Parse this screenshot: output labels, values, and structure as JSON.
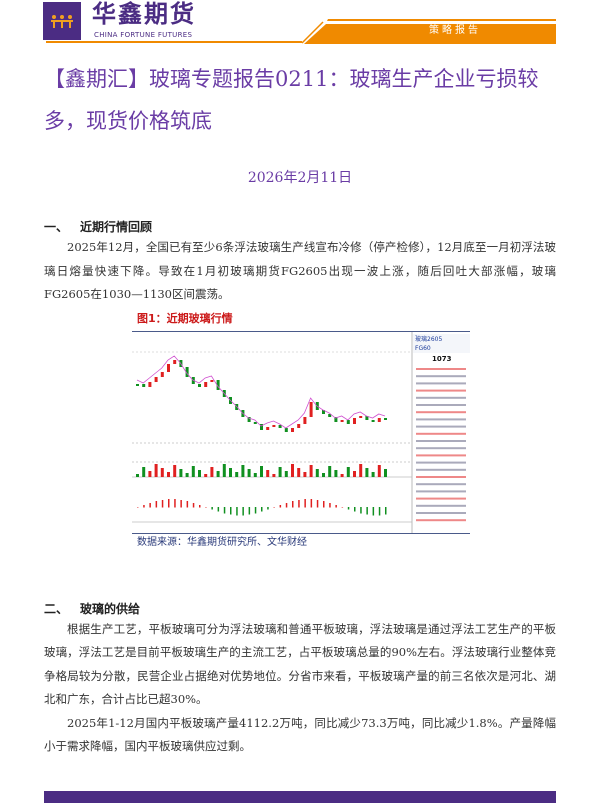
{
  "header": {
    "logo_cn": "华鑫期货",
    "logo_en": "CHINA FORTUNE FUTURES",
    "report_type": "策略报告",
    "brand_color": "#4b2c83",
    "accent_color": "#f08a00"
  },
  "title": "【鑫期汇】玻璃专题报告0211：玻璃生产企业亏损较多，现货价格筑底",
  "date": "2026年2月11日",
  "sections": [
    {
      "number": "一、",
      "heading": "近期行情回顾",
      "paragraphs": [
        "2025年12月，全国已有至少6条浮法玻璃生产线宣布冷修（停产检修），12月底至一月初浮法玻璃日熔量快速下降。导致在1月初玻璃期货FG2605出现一波上涨，随后回吐大部涨幅，玻璃FG2605在1030—1130区间震荡。"
      ],
      "figure": {
        "caption": "图1：近期玻璃行情",
        "source": "数据来源：华鑫期货研究所、文华财经",
        "quote_panel": {
          "contract": "玻璃2605",
          "code": "FG60",
          "last_price": "1073"
        }
      }
    },
    {
      "number": "二、",
      "heading": "玻璃的供给",
      "paragraphs": [
        "根据生产工艺，平板玻璃可分为浮法玻璃和普通平板玻璃，浮法玻璃是通过浮法工艺生产的平板玻璃，浮法工艺是目前平板玻璃生产的主流工艺，占平板玻璃总量的90%左右。浮法玻璃行业整体竞争格局较为分散，民营企业占据绝对优势地位。分省市来看，平板玻璃产量的前三名依次是河北、湖北和广东，合计占比已超30%。",
        "2025年1-12月国内平板玻璃产量4112.2万吨，同比减少73.3万吨，同比减少1.8%。产量降幅小于需求降幅，国内平板玻璃供应过剩。"
      ]
    }
  ]
}
